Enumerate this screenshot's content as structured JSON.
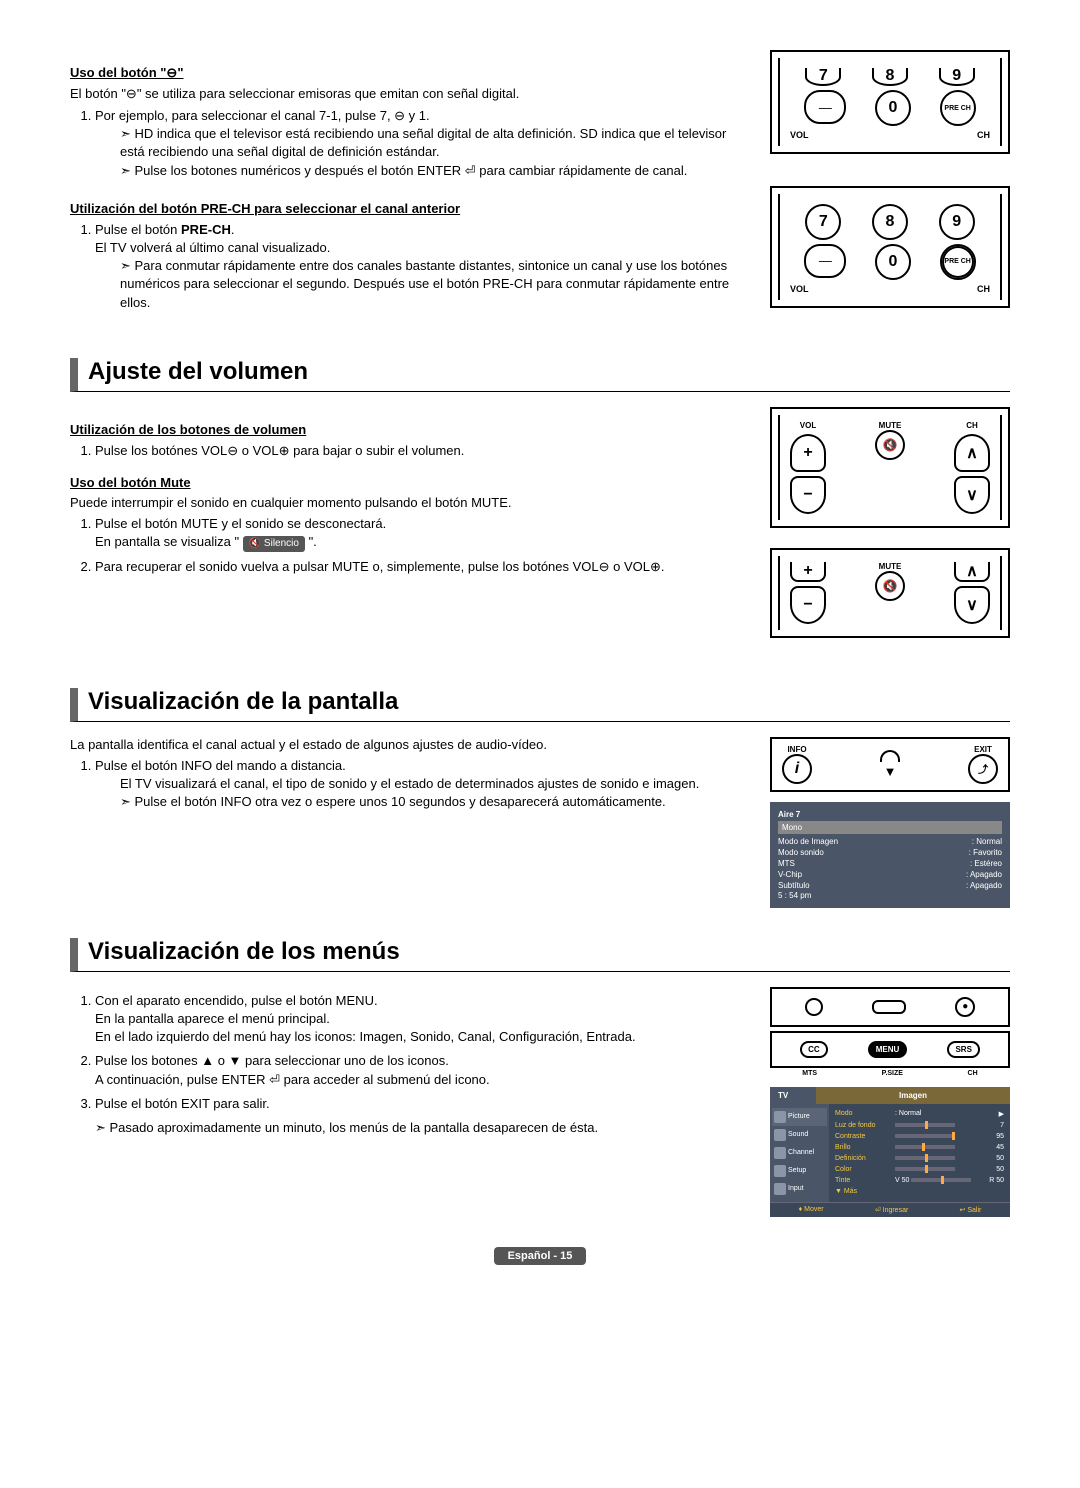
{
  "section1": {
    "heading": "Uso del botón \"⊖\"",
    "intro": "El botón \"⊖\" se utiliza para seleccionar emisoras que emitan con señal digital.",
    "step1": "Por ejemplo, para seleccionar el canal 7-1, pulse 7, ⊖ y 1.",
    "note1": "HD indica que el televisor está recibiendo una señal digital de alta definición. SD indica que el televisor está recibiendo una señal digital de definición estándar.",
    "note2": "Pulse los botones numéricos y después el botón ENTER ⏎ para cambiar rápidamente de canal."
  },
  "section2": {
    "heading": "Utilización del botón PRE-CH para seleccionar el canal anterior",
    "step1a": "Pulse el botón ",
    "step1b": "PRE-CH",
    "step1c": ".",
    "step1d": "El TV volverá al último canal visualizado.",
    "note1": "Para conmutar rápidamente entre dos canales bastante distantes, sintonice un canal y use los botónes numéricos para seleccionar el segundo. Después use el botón PRE-CH para conmutar rápidamente entre ellos."
  },
  "volumen": {
    "title": "Ajuste del volumen",
    "sub1": "Utilización de los botones de volumen",
    "step1": "Pulse los botónes VOL⊖ o VOL⊕ para bajar o subir el volumen.",
    "sub2": "Uso del botón Mute",
    "intro2": "Puede interrumpir el sonido en cualquier momento pulsando el botón MUTE.",
    "step2a": "Pulse el botón MUTE y el sonido se desconectará.",
    "step2b": "En pantalla se visualiza \" ",
    "silencio": "🔇 Silencio",
    "step2c": " \".",
    "step3": "Para recuperar el sonido vuelva a pulsar MUTE o, simplemente, pulse los botónes VOL⊖ o VOL⊕."
  },
  "pantalla": {
    "title": "Visualización de la pantalla",
    "intro": "La pantalla identifica el canal actual y el estado de algunos ajustes de audio-vídeo.",
    "step1": "Pulse el botón INFO del mando a distancia.",
    "desc": "El TV visualizará el canal, el tipo de sonido y el estado de determinados ajustes de sonido e imagen.",
    "note": "Pulse el botón INFO otra vez o espere unos 10 segundos y desaparecerá automáticamente."
  },
  "osd": {
    "title": "Aire 7",
    "mono": "Mono",
    "r1l": "Modo de Imagen",
    "r1v": ": Normal",
    "r2l": "Modo sonido",
    "r2v": ": Favorito",
    "r3l": "MTS",
    "r3v": ": Estéreo",
    "r4l": "V-Chip",
    "r4v": ": Apagado",
    "r5l": "Subtítulo",
    "r5v": ": Apagado",
    "time": "5 : 54 pm"
  },
  "menus": {
    "title": "Visualización de los menús",
    "step1": "Con el aparato encendido, pulse el botón MENU.",
    "step1b": "En la pantalla aparece el menú principal.",
    "step1c": "En el lado izquierdo del menú hay los iconos: Imagen, Sonido, Canal, Configuración, Entrada.",
    "step2": "Pulse los botones ▲ o ▼ para seleccionar uno de los iconos.",
    "step2b": "A continuación, pulse ENTER ⏎ para acceder al submenú del icono.",
    "step3": "Pulse el botón EXIT para salir.",
    "note": "Pasado aproximadamente un minuto, los menús de la pantalla desaparecen de ésta."
  },
  "remoteLabels": {
    "vol": "VOL",
    "ch": "CH",
    "mute": "MUTE",
    "prech": "PRE\nCH",
    "info": "INFO",
    "exit": "EXIT",
    "cc": "CC",
    "menu": "MENU",
    "srs": "SRS",
    "mts": "MTS",
    "psize": "P.SIZE"
  },
  "menuBox": {
    "tv": "TV",
    "imagen": "Imagen",
    "sidebar": [
      "Picture",
      "Sound",
      "Channel",
      "Setup",
      "Input"
    ],
    "rows": [
      {
        "l": "Modo",
        "v": ": Normal",
        "arrow": "▶"
      },
      {
        "l": "Luz de fondo",
        "slider": 50,
        "n": "7"
      },
      {
        "l": "Contraste",
        "slider": 95,
        "n": "95"
      },
      {
        "l": "Brillo",
        "slider": 45,
        "n": "45"
      },
      {
        "l": "Definición",
        "slider": 50,
        "n": "50"
      },
      {
        "l": "Color",
        "slider": 50,
        "n": "50"
      },
      {
        "l": "Tinte",
        "pre": "V 50",
        "slider": 50,
        "n": "R 50"
      }
    ],
    "mas": "▼ Más",
    "footer": [
      "♦ Mover",
      "⏎ Ingresar",
      "↩ Salir"
    ]
  },
  "footer": "Español - 15"
}
